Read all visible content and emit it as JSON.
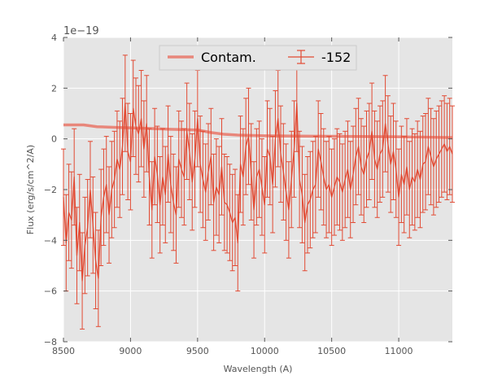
{
  "chart_data": {
    "type": "line",
    "xlabel": "Wavelength (A)",
    "ylabel": "Flux (erg/s/cm^2/A)",
    "y_offset_label": "1e−19",
    "xlim": [
      8500,
      11400
    ],
    "ylim": [
      -8,
      4
    ],
    "x_ticks": [
      8500,
      9000,
      9500,
      10000,
      10500,
      11000
    ],
    "x_tick_labels": [
      "8500",
      "9000",
      "9500",
      "10000",
      "10500",
      "11000"
    ],
    "y_ticks": [
      -8,
      -6,
      -4,
      -2,
      0,
      2,
      4
    ],
    "y_tick_labels": [
      "−8",
      "−6",
      "−4",
      "−2",
      "0",
      "2",
      "4"
    ],
    "grid": true,
    "legend_position": "top-center",
    "colors": {
      "background": "#e5e5e5",
      "data": "#e24a33",
      "contam": "#e8877b"
    },
    "series": [
      {
        "name": "Contam.",
        "style": "thick-line",
        "x": [
          8500,
          8650,
          8750,
          8900,
          9100,
          9300,
          9500,
          9600,
          9700,
          9800,
          10000,
          10500,
          11000,
          11400
        ],
        "y": [
          0.55,
          0.55,
          0.48,
          0.45,
          0.42,
          0.38,
          0.35,
          0.25,
          0.18,
          0.15,
          0.12,
          0.1,
          0.08,
          0.05
        ]
      },
      {
        "name": "-152",
        "style": "errorbar-line",
        "x": [
          8500,
          8520,
          8540,
          8560,
          8580,
          8600,
          8620,
          8640,
          8660,
          8680,
          8700,
          8720,
          8740,
          8760,
          8780,
          8800,
          8820,
          8840,
          8860,
          8880,
          8900,
          8920,
          8940,
          8960,
          8980,
          9000,
          9020,
          9040,
          9060,
          9080,
          9100,
          9120,
          9140,
          9160,
          9180,
          9200,
          9220,
          9240,
          9260,
          9280,
          9300,
          9320,
          9340,
          9360,
          9380,
          9400,
          9420,
          9440,
          9460,
          9480,
          9500,
          9520,
          9540,
          9560,
          9580,
          9600,
          9620,
          9640,
          9660,
          9680,
          9700,
          9720,
          9740,
          9760,
          9780,
          9800,
          9820,
          9840,
          9860,
          9880,
          9900,
          9920,
          9940,
          9960,
          9980,
          10000,
          10020,
          10040,
          10060,
          10080,
          10100,
          10120,
          10140,
          10160,
          10180,
          10200,
          10220,
          10240,
          10260,
          10280,
          10300,
          10320,
          10340,
          10360,
          10380,
          10400,
          10420,
          10440,
          10460,
          10480,
          10500,
          10520,
          10540,
          10560,
          10580,
          10600,
          10620,
          10640,
          10660,
          10680,
          10700,
          10720,
          10740,
          10760,
          10780,
          10800,
          10820,
          10840,
          10860,
          10880,
          10900,
          10920,
          10940,
          10960,
          10980,
          11000,
          11020,
          11040,
          11060,
          11080,
          11100,
          11120,
          11140,
          11160,
          11180,
          11200,
          11220,
          11240,
          11260,
          11280,
          11300,
          11320,
          11340,
          11360,
          11380,
          11400
        ],
        "y": [
          -2.3,
          -4.1,
          -2.9,
          -3.2,
          -1.5,
          -4.6,
          -3.3,
          -5.6,
          -4.2,
          -3.5,
          -2.0,
          -3.4,
          -4.8,
          -5.5,
          -3.1,
          -2.3,
          -1.8,
          -3.0,
          -2.0,
          -1.6,
          -0.8,
          -1.2,
          -0.3,
          1.4,
          -0.5,
          -0.9,
          1.2,
          0.5,
          0.2,
          0.8,
          -0.4,
          0.6,
          -1.5,
          -2.8,
          -0.7,
          -1.4,
          -2.6,
          -1.5,
          -2.2,
          -0.6,
          -1.8,
          -2.5,
          -3.0,
          -0.8,
          -1.2,
          -1.5,
          0.3,
          -0.5,
          -1.7,
          -0.8,
          0.8,
          -1.0,
          -1.6,
          -2.1,
          -1.3,
          -0.7,
          -2.5,
          -1.9,
          -2.2,
          -1.1,
          -2.5,
          -2.6,
          -2.9,
          -3.3,
          -3.1,
          -4.1,
          -1.0,
          -1.5,
          -0.3,
          0.1,
          -1.3,
          -2.8,
          -1.5,
          -1.2,
          -1.9,
          -2.6,
          -0.4,
          -0.7,
          -1.8,
          0.0,
          0.8,
          -0.6,
          -1.3,
          -2.1,
          -2.8,
          -1.6,
          -0.4,
          1.4,
          -1.6,
          -2.2,
          -3.3,
          -2.6,
          -2.4,
          -2.0,
          -1.8,
          -0.4,
          -0.9,
          -1.5,
          -2.0,
          -1.8,
          -2.3,
          -1.9,
          -1.5,
          -1.7,
          -2.1,
          -1.6,
          -1.2,
          -2.0,
          -1.4,
          -0.7,
          -0.3,
          -1.1,
          -1.4,
          -0.8,
          -0.5,
          0.3,
          -0.8,
          -1.2,
          -0.6,
          -0.4,
          0.6,
          -0.2,
          -1.0,
          -0.5,
          -1.2,
          -2.3,
          -1.4,
          -1.8,
          -1.1,
          -2.0,
          -1.5,
          -1.7,
          -1.2,
          -1.6,
          -1.0,
          -0.9,
          -0.3,
          -0.7,
          -1.1,
          -0.8,
          -0.6,
          -0.4,
          -0.2,
          -0.5,
          -0.3,
          -0.6
        ],
        "yerr": 1.9
      }
    ]
  }
}
